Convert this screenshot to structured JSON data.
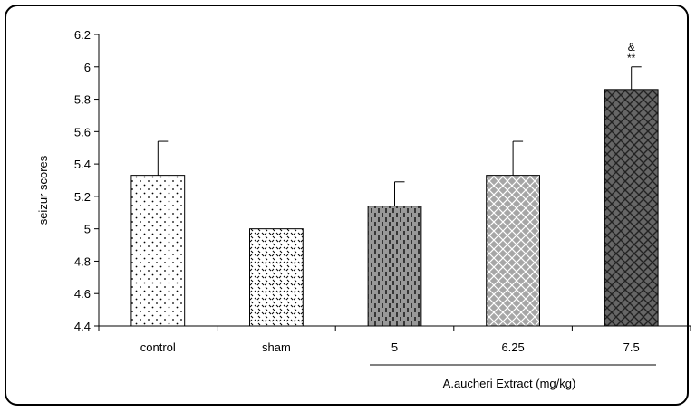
{
  "chart_data": {
    "type": "bar",
    "title": "",
    "ylabel": "seizur scores",
    "group_label": "A.aucheri Extract (mg/kg)",
    "ylim": [
      4.4,
      6.2
    ],
    "yticks": [
      4.4,
      4.6,
      4.8,
      5,
      5.2,
      5.4,
      5.6,
      5.8,
      6,
      6.2
    ],
    "ytick_labels": [
      "4.4",
      "4.6",
      "4.8",
      "5",
      "5.2",
      "5.4",
      "5.6",
      "5.8",
      "6",
      "6.2"
    ],
    "categories": [
      "control",
      "sham",
      "5",
      "6.25",
      "7.5"
    ],
    "values": [
      5.33,
      5.0,
      5.14,
      5.33,
      5.86
    ],
    "errors": [
      0.21,
      0.0,
      0.15,
      0.21,
      0.14
    ],
    "fill_patterns": [
      "dots",
      "diagonal-ticks",
      "dashed-vertical",
      "crosshatch",
      "dark-crosshatch"
    ],
    "annotations": [
      {
        "category": "7.5",
        "lines": [
          "&",
          "**"
        ]
      }
    ],
    "grid": false,
    "legend": "none"
  }
}
